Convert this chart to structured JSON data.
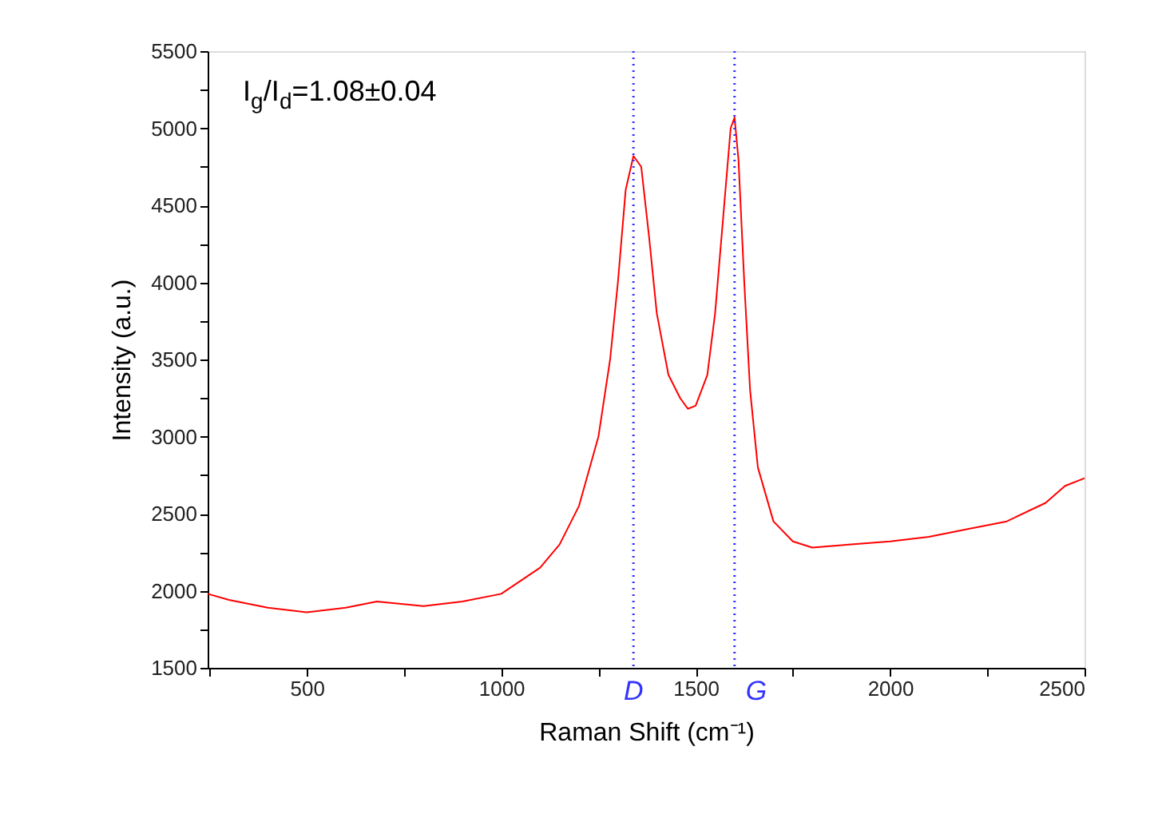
{
  "chart_data": {
    "type": "line",
    "xlabel": "Raman Shift (cm⁻¹)",
    "ylabel": "Intensity (a.u.)",
    "annotations": [
      "I$_{g}$/I$_{d}$=1.08±0.04"
    ],
    "x": [
      245,
      300,
      400,
      500,
      600,
      680,
      800,
      900,
      1000,
      1100,
      1150,
      1200,
      1250,
      1280,
      1300,
      1320,
      1340,
      1360,
      1380,
      1400,
      1430,
      1460,
      1480,
      1500,
      1530,
      1550,
      1570,
      1590,
      1600,
      1610,
      1625,
      1640,
      1660,
      1700,
      1750,
      1800,
      1900,
      2000,
      2100,
      2200,
      2300,
      2400,
      2450,
      2500
    ],
    "series": [
      {
        "color": "#ff0000",
        "values": [
          1980,
          1940,
          1890,
          1860,
          1890,
          1930,
          1900,
          1930,
          1980,
          2150,
          2300,
          2550,
          3000,
          3500,
          4000,
          4600,
          4820,
          4750,
          4300,
          3800,
          3400,
          3250,
          3180,
          3200,
          3400,
          3800,
          4400,
          5000,
          5070,
          4800,
          4000,
          3300,
          2800,
          2450,
          2320,
          2280,
          2300,
          2320,
          2350,
          2400,
          2450,
          2570,
          2680,
          2730
        ]
      }
    ],
    "xlim": [
      245,
      2500
    ],
    "xticks": [
      500,
      1000,
      1500,
      2000,
      2500
    ],
    "ylim": [
      1500,
      5500
    ],
    "yticks": [
      1500,
      2000,
      2500,
      3000,
      3500,
      4000,
      4500,
      5000,
      5500
    ],
    "ref_lines": [
      {
        "axis": "x",
        "value": 1340,
        "label": "D",
        "color": "#3333ff",
        "line_style": "dotted"
      },
      {
        "axis": "x",
        "value": 1600,
        "label": "G",
        "color": "#3333ff",
        "line_style": "dotted"
      }
    ],
    "grid": false,
    "marker": "none",
    "line_style": "solid"
  }
}
